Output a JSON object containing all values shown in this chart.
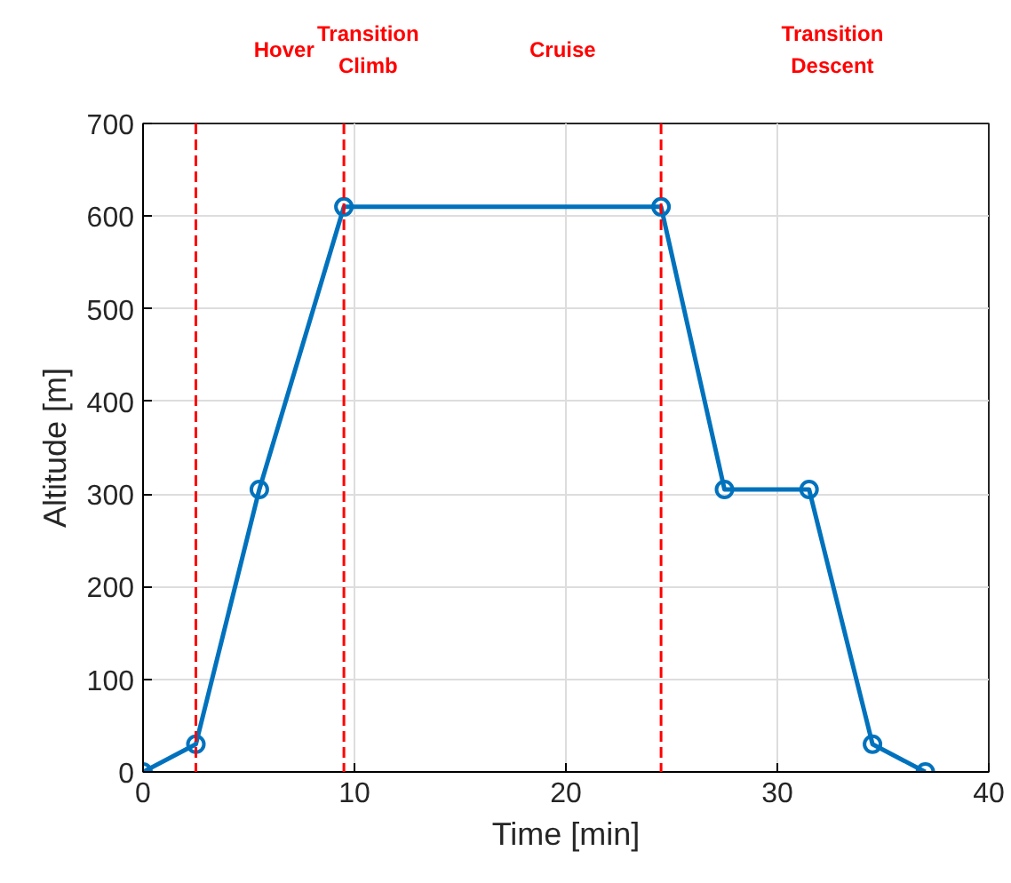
{
  "chart_data": {
    "type": "line",
    "xlabel": "Time [min]",
    "ylabel": "Altitude [m]",
    "x": [
      0,
      2.5,
      5.5,
      9.5,
      24.5,
      27.5,
      31.5,
      34.5,
      37
    ],
    "series": [
      {
        "color": "#0072bd",
        "values": [
          0,
          30,
          305,
          610,
          610,
          305,
          305,
          30,
          0
        ]
      }
    ],
    "xlim": [
      0,
      40
    ],
    "xticks": [
      0,
      10,
      20,
      30,
      40
    ],
    "ylim": [
      0,
      700
    ],
    "yticks": [
      0,
      100,
      200,
      300,
      400,
      500,
      600,
      700
    ],
    "grid": true,
    "marker": "circle",
    "line_style": "solid",
    "ref_lines": [
      {
        "axis": "x",
        "value": 2.5,
        "color": "#ff0000",
        "line_style": "dashed"
      },
      {
        "axis": "x",
        "value": 9.5,
        "color": "#ff0000",
        "line_style": "dashed"
      },
      {
        "axis": "x",
        "value": 24.5,
        "color": "#ff0000",
        "line_style": "dashed"
      }
    ],
    "annotations": [
      "Hover",
      "Transition\nClimb",
      "Cruise",
      "Transition\nDescent"
    ]
  }
}
